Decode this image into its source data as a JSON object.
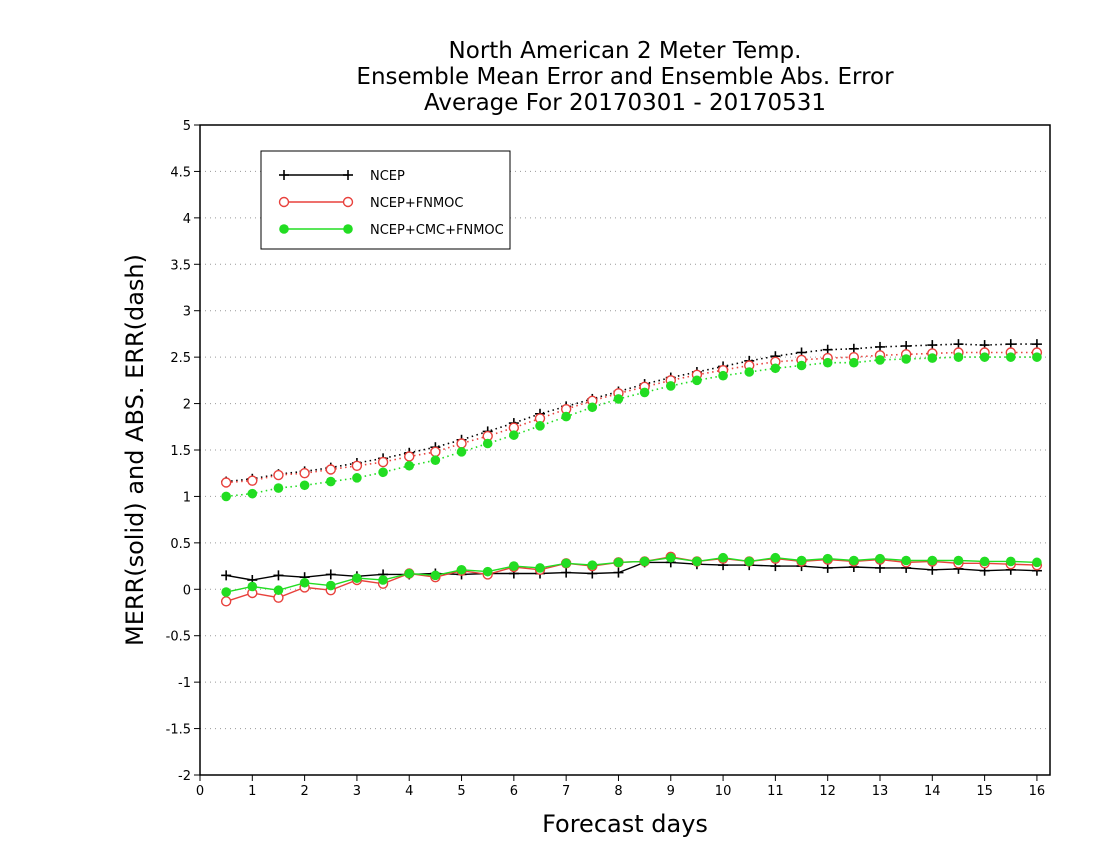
{
  "chart_data": {
    "type": "line",
    "title": [
      "North American 2 Meter Temp.",
      "Ensemble Mean Error and Ensemble Abs. Error",
      "Average For 20170301 - 20170531"
    ],
    "xlabel": "Forecast days",
    "ylabel": "MERR(solid) and ABS. ERR(dash)",
    "xlim": [
      0,
      16.25
    ],
    "ylim": [
      -2,
      5
    ],
    "xticks": [
      "0",
      "1",
      "2",
      "3",
      "4",
      "5",
      "6",
      "7",
      "8",
      "9",
      "10",
      "11",
      "12",
      "13",
      "14",
      "15",
      "16"
    ],
    "yticks": [
      "5",
      "4.5",
      "4",
      "3.5",
      "3",
      "2.5",
      "2",
      "1.5",
      "1",
      "0.5",
      "0",
      "-0.5",
      "-1",
      "-1.5",
      "-2"
    ],
    "grid": "horizontal dotted",
    "legend_position": "top-left",
    "x": [
      0.5,
      1,
      1.5,
      2,
      2.5,
      3,
      3.5,
      4,
      4.5,
      5,
      5.5,
      6,
      6.5,
      7,
      7.5,
      8,
      8.5,
      9,
      9.5,
      10,
      10.5,
      11,
      11.5,
      12,
      12.5,
      13,
      13.5,
      14,
      14.5,
      15,
      15.5,
      16
    ],
    "series": [
      {
        "name": "NCEP",
        "color": "#000000",
        "marker": "plus",
        "merr": [
          0.15,
          0.1,
          0.15,
          0.13,
          0.16,
          0.14,
          0.16,
          0.16,
          0.17,
          0.16,
          0.17,
          0.17,
          0.17,
          0.18,
          0.17,
          0.18,
          0.29,
          0.29,
          0.27,
          0.26,
          0.26,
          0.25,
          0.25,
          0.23,
          0.24,
          0.23,
          0.23,
          0.21,
          0.22,
          0.2,
          0.21,
          0.2
        ],
        "abs_err": [
          1.16,
          1.19,
          1.24,
          1.27,
          1.31,
          1.36,
          1.41,
          1.47,
          1.53,
          1.61,
          1.7,
          1.79,
          1.89,
          1.97,
          2.05,
          2.13,
          2.21,
          2.28,
          2.34,
          2.4,
          2.46,
          2.51,
          2.55,
          2.58,
          2.59,
          2.61,
          2.62,
          2.63,
          2.64,
          2.63,
          2.64,
          2.64
        ]
      },
      {
        "name": "NCEP+FNMOC",
        "color": "#e8413c",
        "marker": "open-circle",
        "merr": [
          -0.13,
          -0.04,
          -0.09,
          0.02,
          -0.01,
          0.1,
          0.06,
          0.17,
          0.13,
          0.2,
          0.16,
          0.24,
          0.21,
          0.28,
          0.25,
          0.29,
          0.3,
          0.35,
          0.3,
          0.33,
          0.3,
          0.33,
          0.3,
          0.32,
          0.3,
          0.32,
          0.29,
          0.3,
          0.28,
          0.28,
          0.27,
          0.26
        ],
        "abs_err": [
          1.15,
          1.17,
          1.23,
          1.25,
          1.29,
          1.33,
          1.37,
          1.43,
          1.48,
          1.57,
          1.65,
          1.74,
          1.84,
          1.94,
          2.03,
          2.11,
          2.18,
          2.25,
          2.31,
          2.36,
          2.41,
          2.45,
          2.47,
          2.49,
          2.5,
          2.52,
          2.53,
          2.54,
          2.55,
          2.55,
          2.55,
          2.55
        ]
      },
      {
        "name": "NCEP+CMC+FNMOC",
        "color": "#22dd22",
        "marker": "filled-circle",
        "merr": [
          -0.03,
          0.03,
          -0.01,
          0.07,
          0.04,
          0.12,
          0.1,
          0.17,
          0.15,
          0.21,
          0.19,
          0.25,
          0.23,
          0.28,
          0.26,
          0.29,
          0.3,
          0.34,
          0.3,
          0.34,
          0.3,
          0.34,
          0.31,
          0.33,
          0.31,
          0.33,
          0.31,
          0.31,
          0.31,
          0.3,
          0.3,
          0.29
        ],
        "abs_err": [
          1.0,
          1.03,
          1.09,
          1.12,
          1.16,
          1.2,
          1.26,
          1.33,
          1.39,
          1.48,
          1.57,
          1.66,
          1.76,
          1.86,
          1.96,
          2.05,
          2.12,
          2.19,
          2.25,
          2.3,
          2.34,
          2.38,
          2.41,
          2.44,
          2.44,
          2.47,
          2.48,
          2.49,
          2.5,
          2.5,
          2.5,
          2.5
        ]
      }
    ]
  }
}
